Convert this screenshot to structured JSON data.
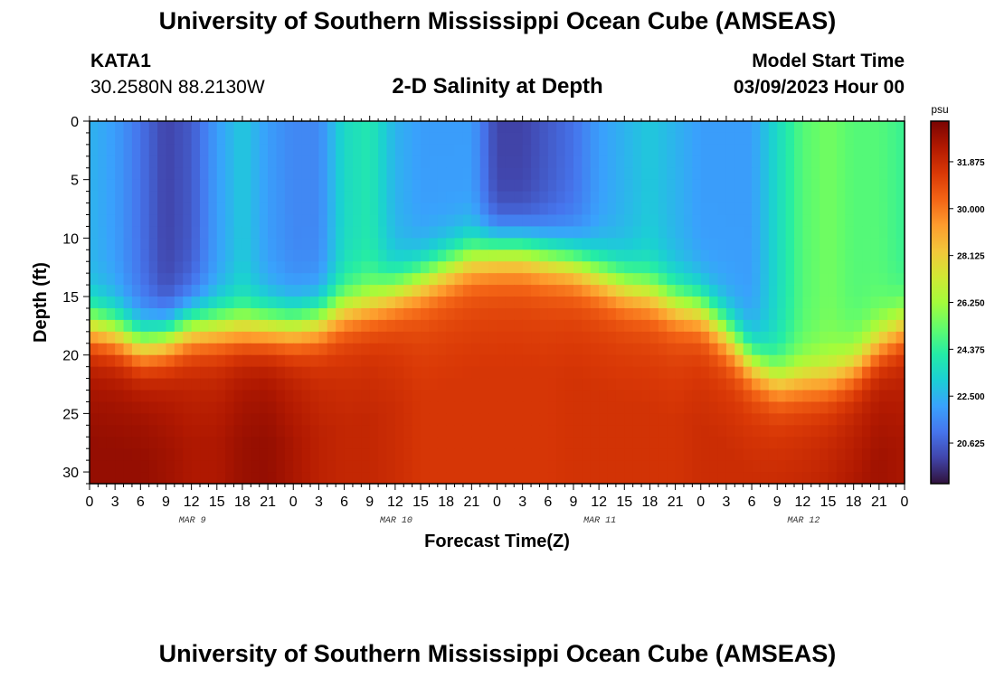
{
  "header": {
    "title": "University of Southern Mississippi Ocean Cube (AMSEAS)",
    "station_id": "KATA1",
    "coordinates": "30.2580N  88.2130W",
    "subtitle": "2-D Salinity at Depth",
    "model_start_label": "Model Start Time",
    "model_start_value": "03/09/2023 Hour 00"
  },
  "footer": {
    "title": "University of Southern Mississippi Ocean Cube (AMSEAS)"
  },
  "chart_data": {
    "type": "heatmap",
    "title": "2-D Salinity at Depth",
    "xlabel": "Forecast Time(Z)",
    "ylabel": "Depth (ft)",
    "units": "psu",
    "x_hours_range": [
      0,
      96
    ],
    "x_tick_step_hours": 3,
    "x_tick_labels": [
      "0",
      "3",
      "6",
      "9",
      "12",
      "15",
      "18",
      "21",
      "0",
      "3",
      "6",
      "9",
      "12",
      "15",
      "18",
      "21",
      "0",
      "3",
      "6",
      "9",
      "12",
      "15",
      "18",
      "21",
      "0",
      "3",
      "6",
      "9",
      "12",
      "15",
      "18",
      "21",
      "0"
    ],
    "date_labels": [
      {
        "label": "MAR 9",
        "hour": 12
      },
      {
        "label": "MAR 10",
        "hour": 36
      },
      {
        "label": "MAR 11",
        "hour": 60
      },
      {
        "label": "MAR 12",
        "hour": 84
      }
    ],
    "ylim": [
      0,
      31
    ],
    "y_ticks": [
      0,
      5,
      10,
      15,
      20,
      25,
      30
    ],
    "colorbar": {
      "range": [
        19.0,
        33.5
      ],
      "ticks": [
        20.625,
        22.5,
        24.375,
        26.25,
        28.125,
        30.0,
        31.875
      ],
      "tick_labels": [
        "20.625",
        "22.500",
        "24.375",
        "26.250",
        "28.125",
        "30.000",
        "31.875"
      ],
      "colors": [
        "#30123b",
        "#4145ab",
        "#4675ed",
        "#39a2fc",
        "#1bcfd4",
        "#24eca6",
        "#61fc6c",
        "#a4fc3b",
        "#d1e834",
        "#f3c63a",
        "#fe9b2d",
        "#f36315",
        "#d93806",
        "#b11901",
        "#7a0402"
      ]
    },
    "description_profile": {
      "hours": [
        0,
        3,
        6,
        9,
        12,
        15,
        18,
        21,
        24,
        27,
        30,
        33,
        36,
        39,
        42,
        45,
        48,
        51,
        54,
        57,
        60,
        63,
        66,
        69,
        72,
        75,
        78,
        81,
        84,
        87,
        90,
        93,
        96
      ],
      "halocline_depth_ft": [
        17.5,
        18,
        19,
        18.5,
        17.5,
        17.5,
        17.5,
        17.5,
        17.5,
        17,
        16,
        15.5,
        14.5,
        13.5,
        12.5,
        11.5,
        11,
        11,
        11.5,
        12,
        13,
        14,
        14.5,
        15.5,
        16,
        18,
        20.5,
        22,
        22,
        22,
        21,
        19,
        17.5
      ],
      "surface_salinity_psu": [
        22.5,
        22.0,
        21.0,
        20.0,
        20.5,
        22.0,
        23.0,
        22.0,
        21.5,
        21.5,
        23.5,
        24.0,
        22.5,
        22.0,
        22.0,
        22.0,
        20.0,
        20.0,
        20.5,
        21.0,
        22.0,
        22.5,
        23.0,
        22.5,
        22.0,
        22.0,
        22.0,
        23.5,
        25.0,
        25.5,
        25.0,
        25.0,
        24.5
      ],
      "bottom_salinity_psu": [
        33.0,
        33.0,
        33.0,
        32.8,
        32.5,
        32.5,
        32.9,
        33.0,
        32.6,
        32.2,
        32.0,
        32.0,
        31.8,
        31.5,
        31.5,
        31.5,
        31.5,
        31.5,
        31.5,
        31.6,
        31.6,
        31.6,
        31.6,
        31.6,
        31.8,
        31.8,
        31.8,
        31.9,
        32.0,
        32.2,
        32.5,
        32.8,
        32.6
      ]
    }
  }
}
